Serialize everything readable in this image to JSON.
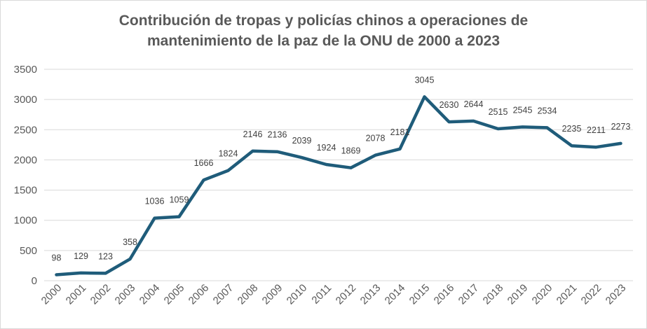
{
  "chart_data": {
    "type": "line",
    "title_lines": [
      "Contribución de tropas y policías chinos a operaciones de",
      "mantenimiento de la paz de la ONU de 2000 a 2023"
    ],
    "xlabel": "",
    "ylabel": "",
    "categories": [
      "2000",
      "2001",
      "2002",
      "2003",
      "2004",
      "2005",
      "2006",
      "2007",
      "2008",
      "2009",
      "2010",
      "2011",
      "2012",
      "2013",
      "2014",
      "2015",
      "2016",
      "2017",
      "2018",
      "2019",
      "2020",
      "2021",
      "2022",
      "2023"
    ],
    "series": [
      {
        "name": "Contribución",
        "values": [
          98,
          129,
          123,
          358,
          1036,
          1059,
          1666,
          1824,
          2146,
          2136,
          2039,
          1924,
          1869,
          2078,
          2181,
          3045,
          2630,
          2644,
          2515,
          2545,
          2534,
          2235,
          2211,
          2273
        ],
        "labels": [
          "98",
          "129",
          "123",
          "358",
          "1036",
          "1059",
          "1666",
          "1824",
          "2146",
          "2136",
          "2039",
          "1924",
          "1869",
          "2078",
          "2181",
          "3045",
          "2630",
          "2644",
          "2515",
          "2545",
          "2534",
          "2235",
          "2211",
          "2273"
        ]
      }
    ],
    "ylim": [
      0,
      3500
    ],
    "yticks": [
      0,
      500,
      1000,
      1500,
      2000,
      2500,
      3000,
      3500
    ],
    "grid": true,
    "legend": "none",
    "colors": {
      "line": "#1f5c7a",
      "grid": "#d9d9d9",
      "text": "#595959"
    }
  }
}
